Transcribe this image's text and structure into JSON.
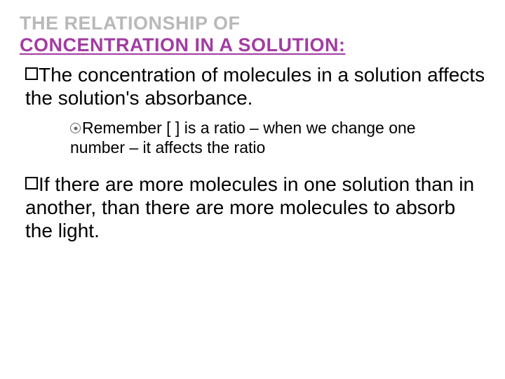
{
  "title": {
    "line1": "THE RELATIONSHIP OF",
    "line2": "CONCENTRATION IN A SOLUTION:"
  },
  "bullet1": {
    "text": "The concentration of molecules in a solution affects the solution's absorbance."
  },
  "subbullet": {
    "text": "Remember [  ] is a ratio – when we change one number – it affects the ratio"
  },
  "bullet2": {
    "text": "If there are more molecules in one solution than in another, than there are more molecules to absorb the light."
  },
  "colors": {
    "title_gray": "#b9b9b9",
    "title_purple": "#a23ca2",
    "body_text": "#000000",
    "background": "#ffffff"
  },
  "fonts": {
    "title_size": 27,
    "body_size": 28,
    "sub_size": 23
  }
}
